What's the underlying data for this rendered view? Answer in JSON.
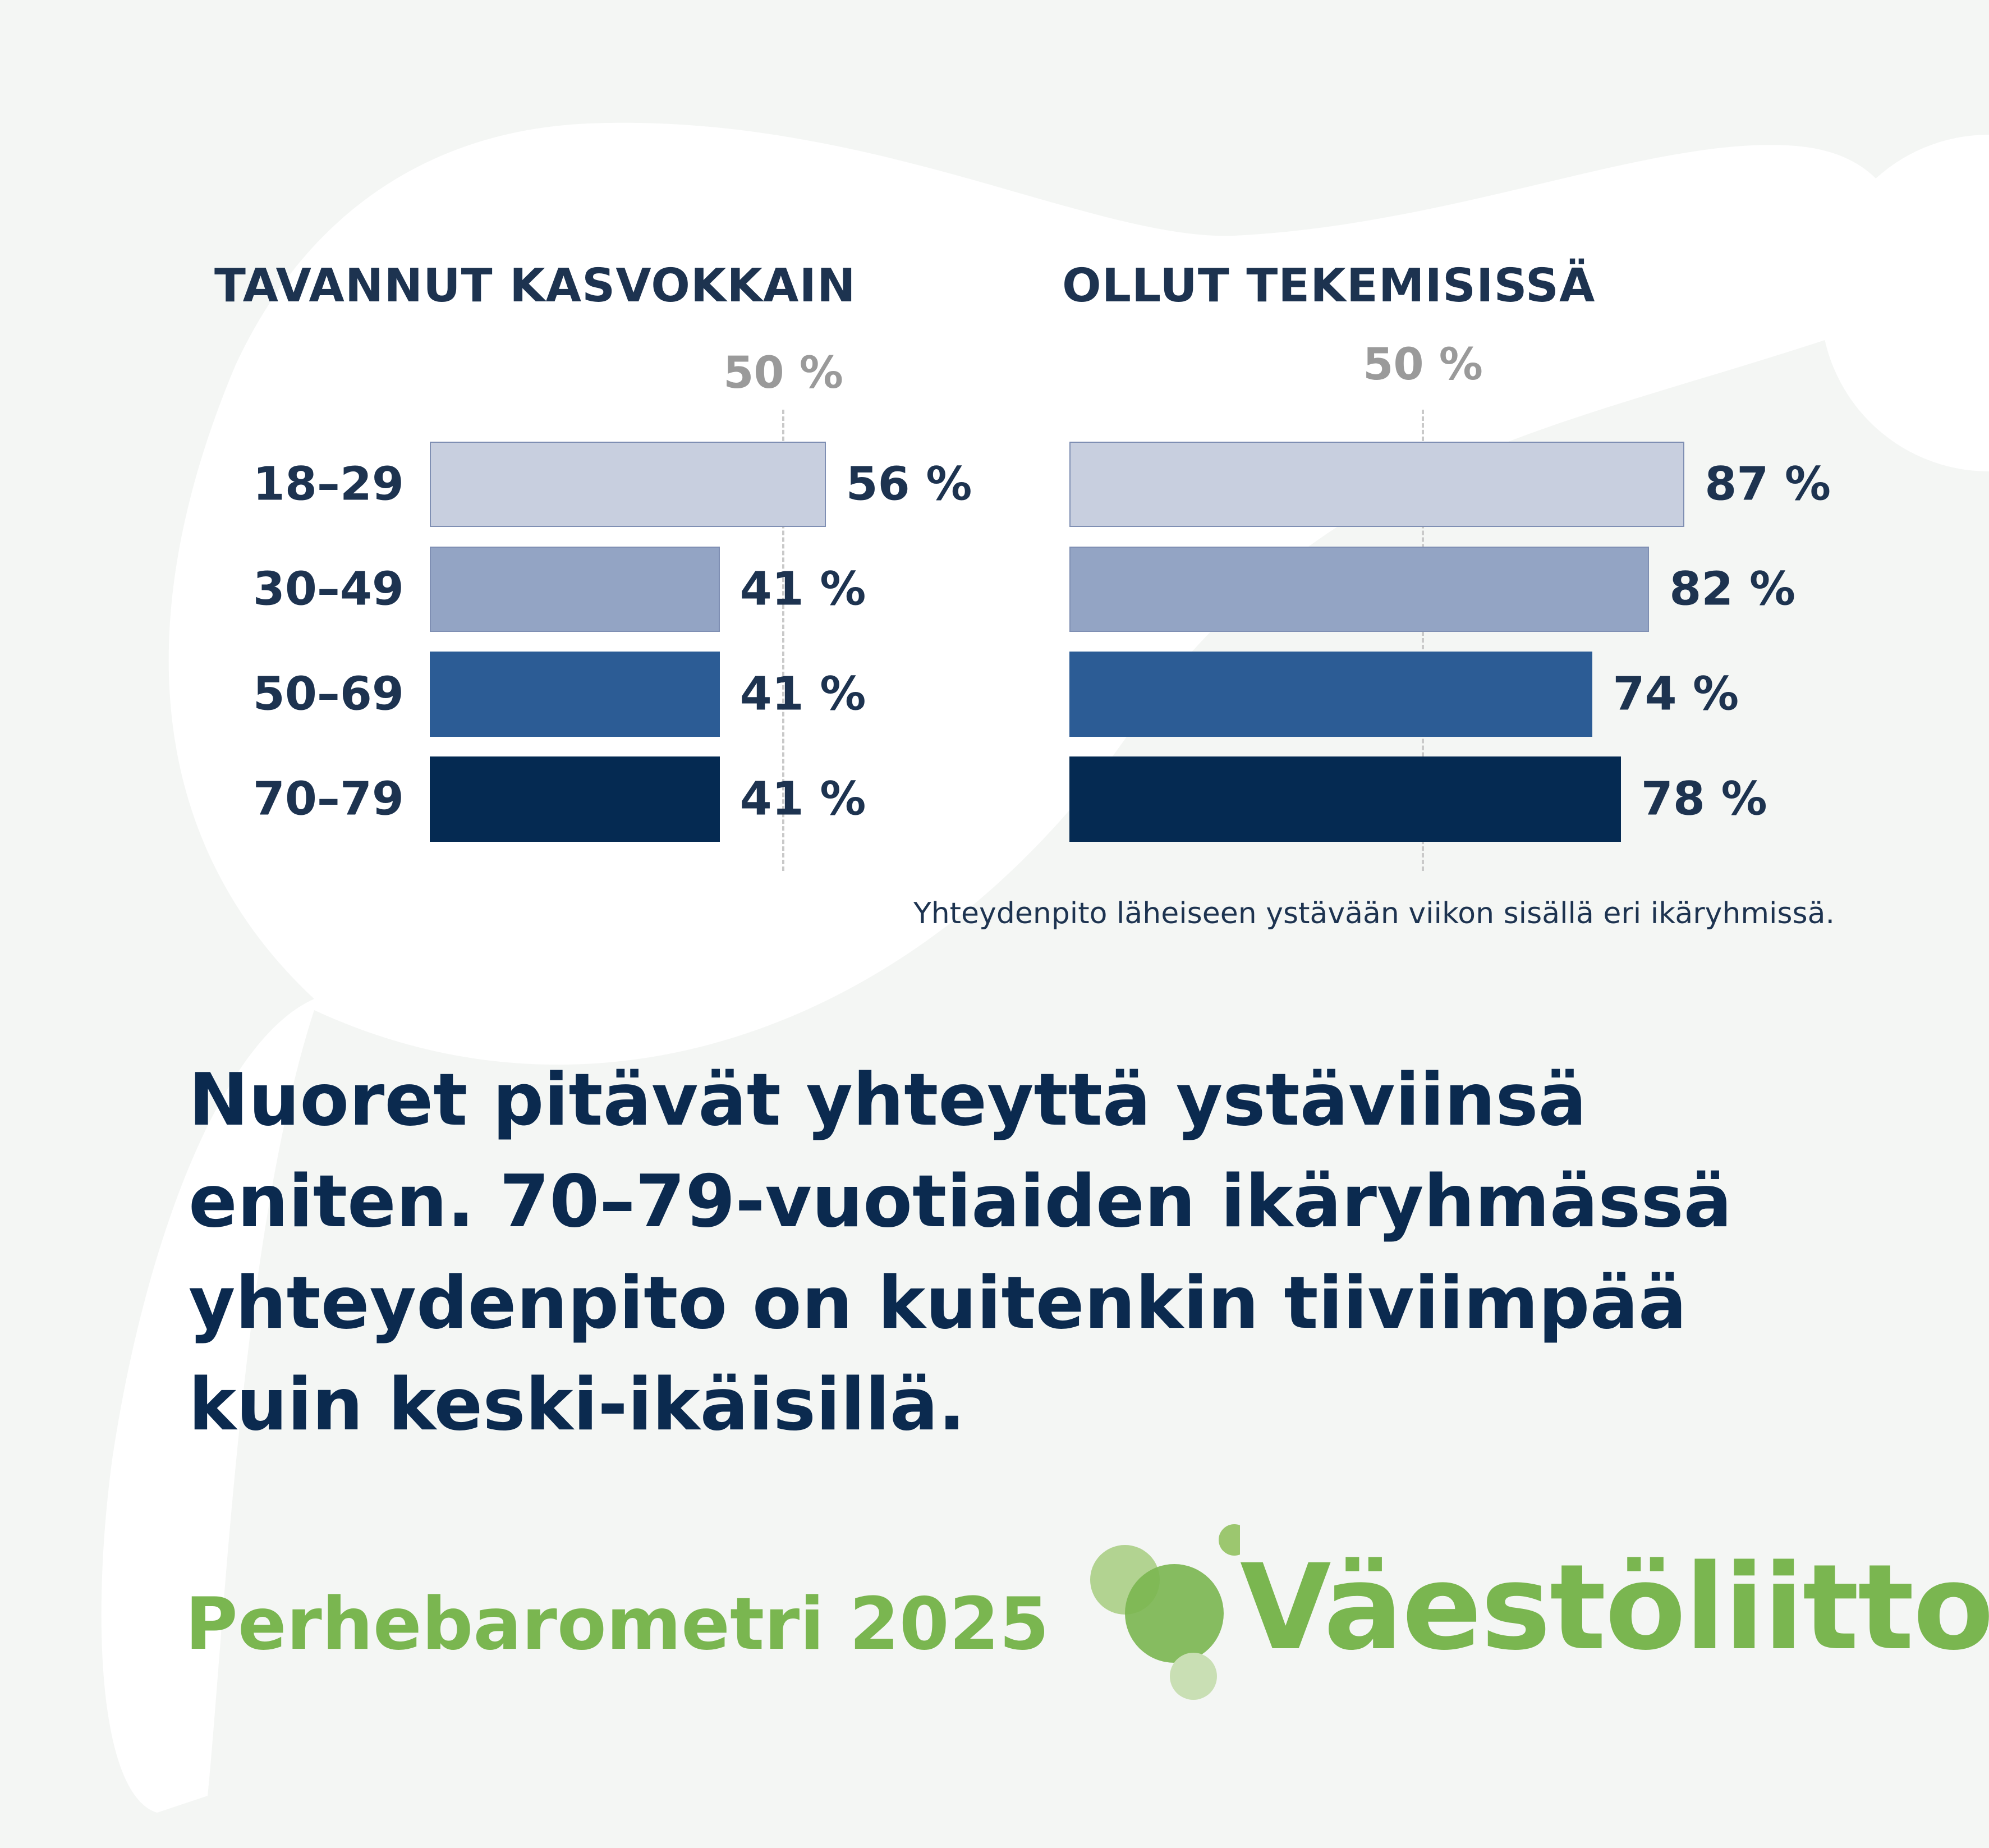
{
  "chart_data": [
    {
      "type": "bar",
      "orientation": "horizontal",
      "title": "TAVANNUT KASVOKKAIN",
      "reference_line": {
        "value": 50,
        "label": "50 %"
      },
      "categories": [
        "18–29",
        "30–49",
        "50–69",
        "70–79"
      ],
      "values": [
        56,
        41,
        41,
        41
      ],
      "value_labels": [
        "56 %",
        "41 %",
        "41 %",
        "41 %"
      ],
      "bar_colors": [
        "#c8cfdf",
        "#93a4c4",
        "#2c5c95",
        "#052a52"
      ],
      "xlim": [
        0,
        100
      ],
      "grid": false
    },
    {
      "type": "bar",
      "orientation": "horizontal",
      "title": "OLLUT TEKEMISISSÄ",
      "reference_line": {
        "value": 50,
        "label": "50 %"
      },
      "categories": [
        "18–29",
        "30–49",
        "50–69",
        "70–79"
      ],
      "values": [
        87,
        82,
        74,
        78
      ],
      "value_labels": [
        "87 %",
        "82 %",
        "74 %",
        "78 %"
      ],
      "bar_colors": [
        "#c8cfdf",
        "#93a4c4",
        "#2c5c95",
        "#052a52"
      ],
      "xlim": [
        0,
        100
      ],
      "grid": false
    }
  ],
  "note": "Yhteydenpito läheiseen ystävään viikon sisällä eri ikäryhmissä.",
  "headline": "Nuoret pitävät yhteyttä ystäviinsä eniten. 70–79-vuotiaiden ikäryhmässä yhteydenpito on kuitenkin tiiviimpää kuin keski-ikäisillä.",
  "source": "Perhebarometri 2025",
  "logo": {
    "text": "Väestöliitto",
    "color": "#7ab650"
  },
  "colors": {
    "title": "#1d3350",
    "headline": "#0b2a4f",
    "reference": "#9a9a9a",
    "background": "#f4f6f4"
  }
}
